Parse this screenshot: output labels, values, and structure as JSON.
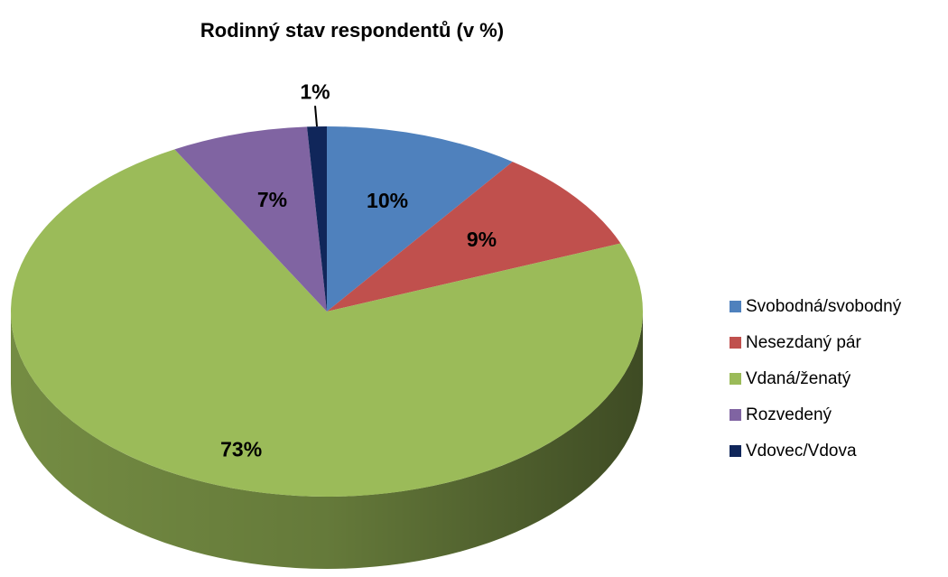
{
  "chart_data": {
    "type": "pie",
    "title": "Rodinný stav respondentů (v %)",
    "categories": [
      "Svobodná/svobodný",
      "Nesezdaný pár",
      "Vdaná/ženatý",
      "Rozvedený",
      "Vdovec/Vdova"
    ],
    "values": [
      10,
      9,
      73,
      7,
      1
    ],
    "value_labels": [
      "10%",
      "9%",
      "73%",
      "7%",
      "1%"
    ],
    "colors": [
      "#4f81bd",
      "#c0504d",
      "#9bbb59",
      "#8064a2",
      "#10265a"
    ],
    "legend": "right"
  }
}
